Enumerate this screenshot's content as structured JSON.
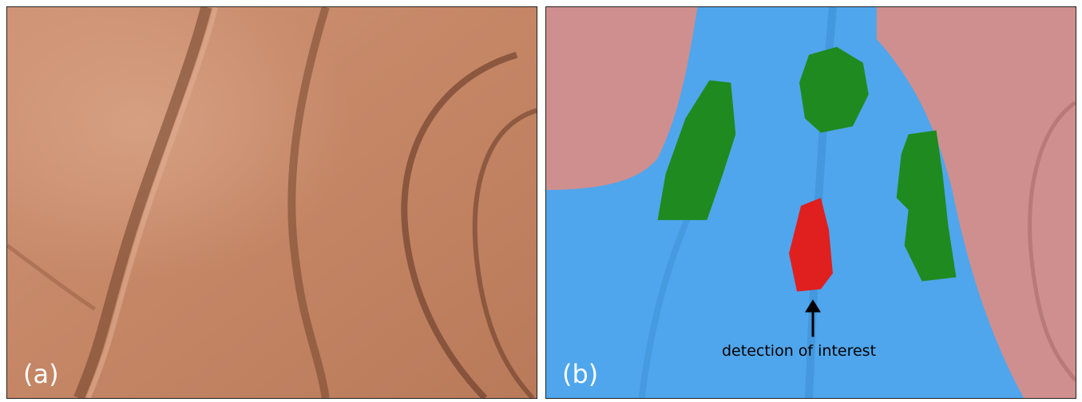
{
  "panels": [
    {
      "label": "(a)"
    },
    {
      "label": "(b)",
      "annotation": "detection of interest"
    }
  ],
  "colors": {
    "tissue": "#c98c6c",
    "background_region": "#4fa6ec",
    "edge_region": "#cf8f8f",
    "candidate": "#1f8a1f",
    "detection": "#e01f1f",
    "arrow": "#000000"
  }
}
